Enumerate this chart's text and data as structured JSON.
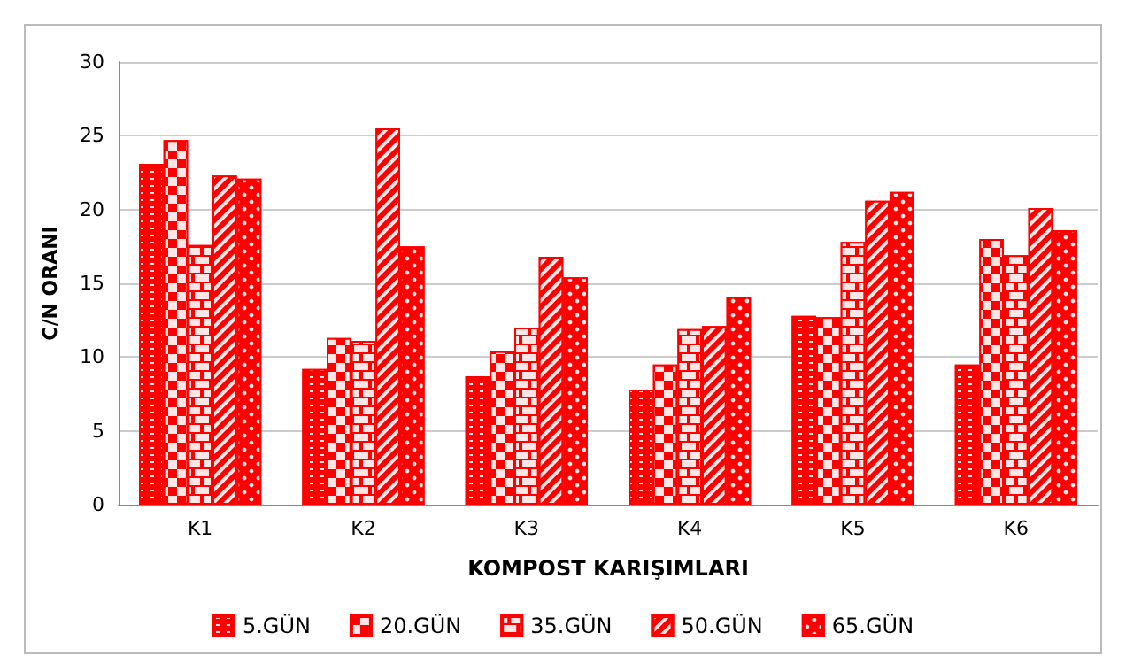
{
  "chart_data": {
    "type": "bar",
    "xlabel": "KOMPOST KARIŞIMLARI",
    "ylabel": "C/N ORANI",
    "categories": [
      "K1",
      "K2",
      "K3",
      "K4",
      "K5",
      "K6"
    ],
    "series": [
      {
        "name": "5.GÜN",
        "color": "#ff0000",
        "values": [
          23.1,
          9.2,
          8.7,
          7.8,
          12.8,
          9.5
        ]
      },
      {
        "name": "20.GÜN",
        "color": "#ff0000",
        "values": [
          24.7,
          11.3,
          10.4,
          9.5,
          12.7,
          18.0
        ]
      },
      {
        "name": "35.GÜN",
        "color": "#ff0000",
        "values": [
          17.6,
          11.1,
          12.0,
          11.9,
          17.8,
          16.9
        ]
      },
      {
        "name": "50.GÜN",
        "color": "#ff0000",
        "values": [
          22.3,
          25.5,
          16.8,
          12.1,
          20.6,
          20.1
        ]
      },
      {
        "name": "65.GÜN",
        "color": "#ff0000",
        "values": [
          22.1,
          17.5,
          15.4,
          14.1,
          21.2,
          18.6
        ]
      }
    ],
    "ylim": [
      0,
      30
    ],
    "yticks": [
      0,
      5,
      10,
      15,
      20,
      25,
      30
    ],
    "grid": "y",
    "legend": "bottom"
  }
}
